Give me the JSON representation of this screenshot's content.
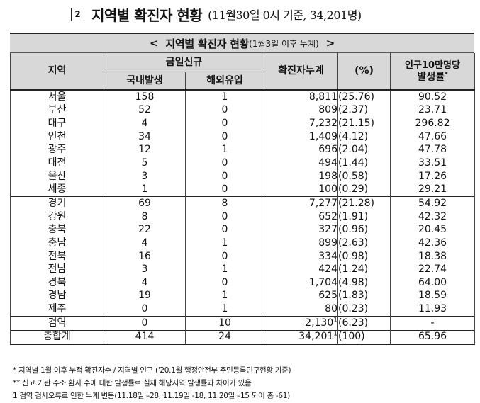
{
  "title": {
    "section_mark": "2",
    "main": "지역별 확진자 현황",
    "paren": "(11월30일 0시 기준, 34,201명)"
  },
  "banner": {
    "left": "<",
    "text": "지역별 확진자 현황",
    "sub": "(1월3일 이후 누계)",
    "right": ">"
  },
  "headers": {
    "region": "지역",
    "daily_new": "금일신규",
    "domestic": "국내발생",
    "overseas": "해외유입",
    "cumulative": "확진자누계",
    "percent": "(%)",
    "rate_line1": "인구10만명당",
    "rate_line2": "발생률",
    "rate_mark": "*"
  },
  "rows": [
    {
      "region": "서울",
      "domestic": "158",
      "overseas": "1",
      "cumulative": "8,811",
      "cum_mark": "",
      "percent": "(25.76)",
      "rate": "90.52"
    },
    {
      "region": "부산",
      "domestic": "52",
      "overseas": "0",
      "cumulative": "809",
      "cum_mark": "",
      "percent": "(2.37)",
      "rate": "23.71"
    },
    {
      "region": "대구",
      "domestic": "4",
      "overseas": "0",
      "cumulative": "7,232",
      "cum_mark": "",
      "percent": "(21.15)",
      "rate": "296.82"
    },
    {
      "region": "인천",
      "domestic": "34",
      "overseas": "0",
      "cumulative": "1,409",
      "cum_mark": "",
      "percent": "(4.12)",
      "rate": "47.66"
    },
    {
      "region": "광주",
      "domestic": "12",
      "overseas": "1",
      "cumulative": "696",
      "cum_mark": "",
      "percent": "(2.04)",
      "rate": "47.78"
    },
    {
      "region": "대전",
      "domestic": "5",
      "overseas": "0",
      "cumulative": "494",
      "cum_mark": "",
      "percent": "(1.44)",
      "rate": "33.51"
    },
    {
      "region": "울산",
      "domestic": "3",
      "overseas": "0",
      "cumulative": "198",
      "cum_mark": "",
      "percent": "(0.58)",
      "rate": "17.26"
    },
    {
      "region": "세종",
      "domestic": "1",
      "overseas": "0",
      "cumulative": "100",
      "cum_mark": "",
      "percent": "(0.29)",
      "rate": "29.21"
    },
    {
      "region": "경기",
      "domestic": "69",
      "overseas": "8",
      "cumulative": "7,277",
      "cum_mark": "",
      "percent": "(21.28)",
      "rate": "54.92"
    },
    {
      "region": "강원",
      "domestic": "8",
      "overseas": "0",
      "cumulative": "652",
      "cum_mark": "",
      "percent": "(1.91)",
      "rate": "42.32"
    },
    {
      "region": "충북",
      "domestic": "22",
      "overseas": "0",
      "cumulative": "327",
      "cum_mark": "",
      "percent": "(0.96)",
      "rate": "20.45"
    },
    {
      "region": "충남",
      "domestic": "4",
      "overseas": "1",
      "cumulative": "899",
      "cum_mark": "",
      "percent": "(2.63)",
      "rate": "42.36"
    },
    {
      "region": "전북",
      "domestic": "16",
      "overseas": "0",
      "cumulative": "334",
      "cum_mark": "",
      "percent": "(0.98)",
      "rate": "18.38"
    },
    {
      "region": "전남",
      "domestic": "3",
      "overseas": "1",
      "cumulative": "424",
      "cum_mark": "",
      "percent": "(1.24)",
      "rate": "22.74"
    },
    {
      "region": "경북",
      "domestic": "4",
      "overseas": "0",
      "cumulative": "1,704",
      "cum_mark": "",
      "percent": "(4.98)",
      "rate": "64.00"
    },
    {
      "region": "경남",
      "domestic": "19",
      "overseas": "1",
      "cumulative": "625",
      "cum_mark": "",
      "percent": "(1.83)",
      "rate": "18.59"
    },
    {
      "region": "제주",
      "domestic": "0",
      "overseas": "1",
      "cumulative": "80",
      "cum_mark": "",
      "percent": "(0.23)",
      "rate": "11.93"
    },
    {
      "region": "검역",
      "domestic": "0",
      "overseas": "10",
      "cumulative": "2,130",
      "cum_mark": "1",
      "percent": "(6.23)",
      "rate": "-"
    }
  ],
  "total": {
    "region": "총합계",
    "domestic": "414",
    "overseas": "24",
    "cumulative": "34,201",
    "cum_mark": "1",
    "percent": "(100)",
    "rate": "65.96"
  },
  "notes": [
    "* 지역별 1월 이후 누적 확진자수 / 지역별 인구 ('20.1월 행정안전부 주민등록인구현황 기준)",
    "** 신고 기관 주소 환자 수에 대한 발생률로 실제 해당지역 발생률과 차이가 있음",
    "1 검역 검사오류로 인한 누계 변동(11.18일 –28, 11.19일 -18, 11.20일 –15 되어 총 -61)"
  ]
}
